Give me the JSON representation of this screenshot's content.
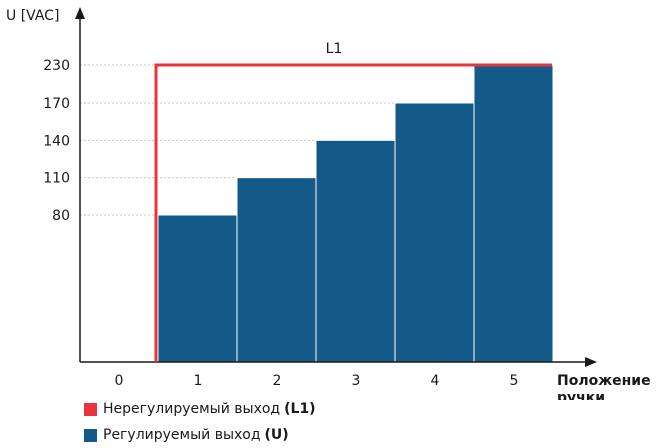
{
  "chart_data": {
    "type": "bar",
    "ylabel": "U [VAC]",
    "xlabel_line1": "Положение",
    "xlabel_line2": "ручки",
    "x_ticks": [
      "0",
      "1",
      "2",
      "3",
      "4",
      "5"
    ],
    "y_ticks": [
      80,
      110,
      140,
      170,
      230
    ],
    "y_tick_labels": [
      "80",
      "110",
      "140",
      "170",
      "230"
    ],
    "categories": [
      "1",
      "2",
      "3",
      "4",
      "5"
    ],
    "series": [
      {
        "name": "Регулируемый выход (U)",
        "color": "#135a89",
        "values": [
          80,
          110,
          140,
          170,
          230
        ]
      },
      {
        "name": "Нерегулируемый выход (L1)",
        "color": "#e8343f",
        "line_level": 230,
        "label": "L1"
      }
    ],
    "grid": "dotted horizontal at ticks"
  },
  "legend": {
    "items": [
      {
        "text": "Нерегулируемый выход ",
        "bold": "(L1)",
        "color": "#e8343f"
      },
      {
        "text": "Регулируемый выход ",
        "bold": "(U)",
        "color": "#135a89"
      }
    ]
  }
}
